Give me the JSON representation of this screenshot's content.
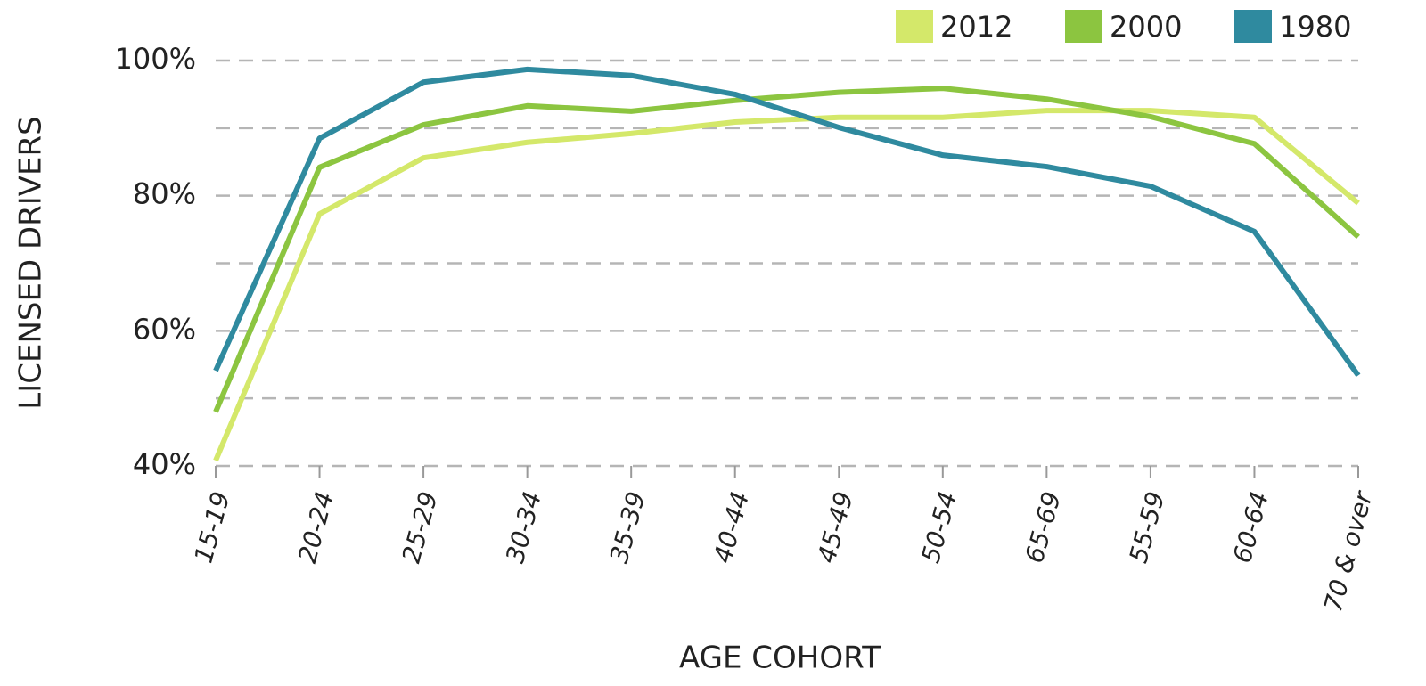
{
  "chart_data": {
    "type": "line",
    "categories": [
      "15-19",
      "20-24",
      "25-29",
      "30-34",
      "35-39",
      "40-44",
      "45-49",
      "50-54",
      "65-69",
      "55-59",
      "60-64",
      "70 & over"
    ],
    "series": [
      {
        "name": "2012",
        "color": "#d4e86a",
        "values": [
          40.8,
          77.3,
          85.6,
          87.9,
          89.2,
          90.9,
          91.6,
          91.6,
          92.6,
          92.6,
          91.6,
          78.9
        ]
      },
      {
        "name": "2000",
        "color": "#8cc540",
        "values": [
          48,
          84.2,
          90.5,
          93.3,
          92.5,
          94.1,
          95.3,
          95.9,
          94.3,
          91.7,
          87.7,
          73.9
        ]
      },
      {
        "name": "1980",
        "color": "#2f8a9f",
        "values": [
          54.1,
          88.5,
          96.8,
          98.7,
          97.8,
          95,
          90.1,
          86,
          84.3,
          81.4,
          74.7,
          53.4
        ]
      }
    ],
    "ylim": [
      40,
      100
    ],
    "yticks": [
      {
        "value": 40,
        "label": "40%"
      },
      {
        "value": 60,
        "label": "60%"
      },
      {
        "value": 80,
        "label": "80%"
      },
      {
        "value": 100,
        "label": "100%"
      }
    ],
    "minor_yticks": [
      50,
      70,
      90
    ],
    "grid": true,
    "legend": "top-right",
    "xlabel": "AGE COHORT",
    "ylabel": "LICENSED DRIVERS"
  }
}
